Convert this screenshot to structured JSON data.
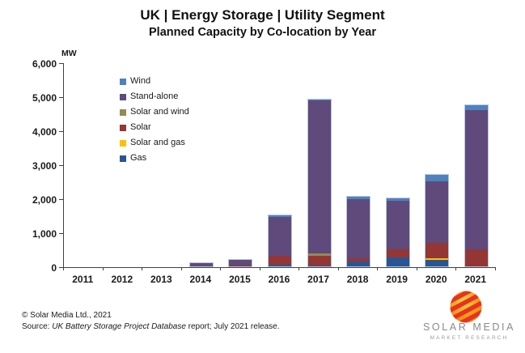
{
  "title": "UK | Energy Storage | Utility Segment",
  "subtitle": "Planned Capacity by Co-location by Year",
  "footer": {
    "copyright": "© Solar Media Ltd., 2021",
    "source_prefix": "Source: ",
    "source_italic": "UK Battery Storage Project Database",
    "source_suffix": " report; July 2021 release."
  },
  "logo": {
    "brand": "SOLAR MEDIA",
    "tagline": "MARKET RESEARCH"
  },
  "chart_data": {
    "type": "bar",
    "stacked": true,
    "title": "UK | Energy Storage | Utility Segment — Planned Capacity by Co-location by Year",
    "xlabel": "",
    "ylabel": "MW",
    "y_axis_unit_label": "MW",
    "ylim": [
      0,
      6000
    ],
    "ytick_interval": 1000,
    "ytick_labels": [
      "6,000",
      "5,000",
      "4,000",
      "3,000",
      "2,000",
      "1,000",
      "0"
    ],
    "grid": false,
    "legend_position": "upper-left-inside",
    "legend_order": [
      "Wind",
      "Stand-alone",
      "Solar and wind",
      "Solar",
      "Solar and gas",
      "Gas"
    ],
    "categories": [
      "2011",
      "2012",
      "2013",
      "2014",
      "2015",
      "2016",
      "2017",
      "2018",
      "2019",
      "2020",
      "2021"
    ],
    "series": [
      {
        "name": "Gas",
        "color": "#2A5594",
        "values": [
          0,
          0,
          0,
          0,
          0,
          50,
          30,
          150,
          270,
          180,
          0
        ]
      },
      {
        "name": "Solar and gas",
        "color": "#FFC000",
        "values": [
          0,
          0,
          0,
          0,
          0,
          0,
          0,
          0,
          0,
          50,
          0
        ]
      },
      {
        "name": "Solar",
        "color": "#943634",
        "values": [
          0,
          0,
          0,
          0,
          30,
          260,
          290,
          80,
          220,
          460,
          500
        ]
      },
      {
        "name": "Solar and wind",
        "color": "#948A54",
        "values": [
          0,
          0,
          0,
          0,
          0,
          0,
          50,
          0,
          0,
          0,
          0
        ]
      },
      {
        "name": "Stand-alone",
        "color": "#5F4A7B",
        "values": [
          0,
          0,
          0,
          90,
          160,
          1150,
          4500,
          1750,
          1430,
          1800,
          4100
        ]
      },
      {
        "name": "Wind",
        "color": "#4F81BD",
        "values": [
          0,
          0,
          0,
          0,
          0,
          50,
          30,
          70,
          70,
          190,
          150
        ]
      }
    ],
    "totals": [
      0,
      0,
      0,
      90,
      190,
      1510,
      4900,
      2050,
      1990,
      2680,
      4750
    ]
  }
}
